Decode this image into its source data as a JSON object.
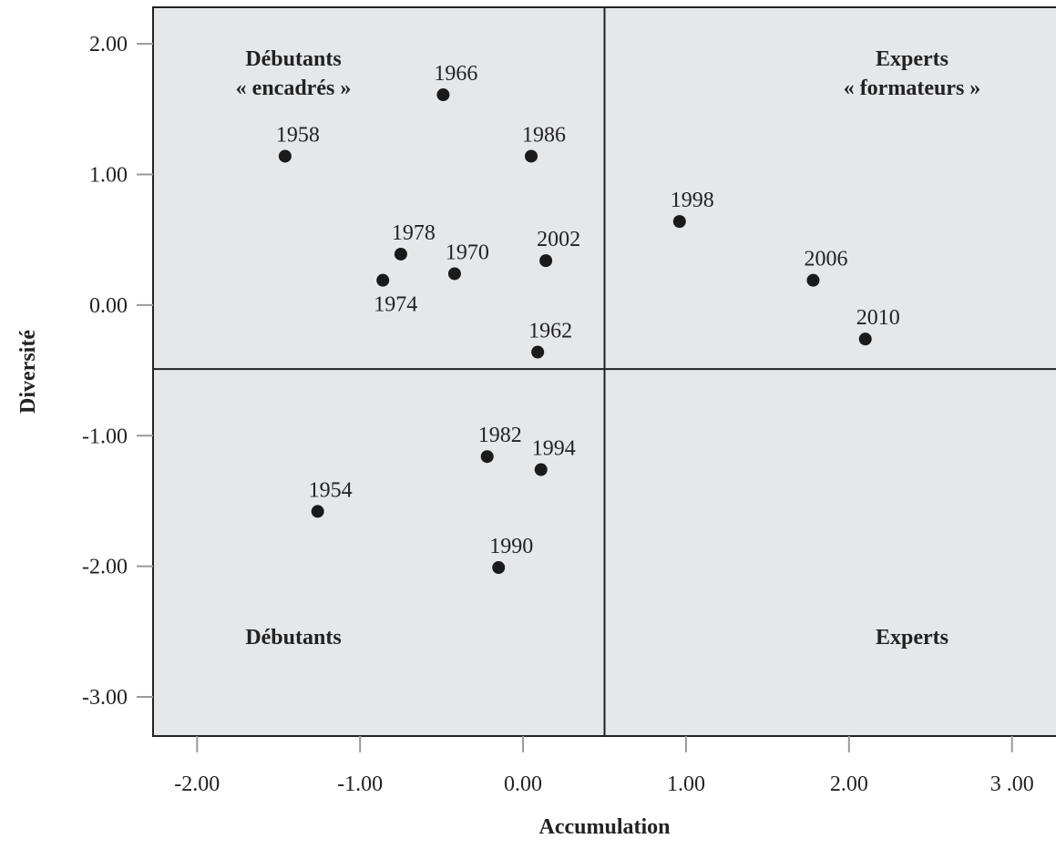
{
  "chart_data": {
    "type": "scatter",
    "xlabel": "Accumulation",
    "ylabel": "Diversité",
    "xlim": [
      -2.27,
      3.27
    ],
    "ylim": [
      -3.3,
      2.28
    ],
    "x_ticks": [
      {
        "value": -2,
        "label": "-2.00"
      },
      {
        "value": -1,
        "label": "-1.00"
      },
      {
        "value": 0,
        "label": "0.00"
      },
      {
        "value": 1,
        "label": "1.00"
      },
      {
        "value": 2,
        "label": "2.00"
      },
      {
        "value": 3,
        "label": "3 .00"
      }
    ],
    "y_ticks": [
      {
        "value": 2,
        "label": "2.00"
      },
      {
        "value": 1,
        "label": "1.00"
      },
      {
        "value": 0,
        "label": "0.00"
      },
      {
        "value": -1,
        "label": "-1.00"
      },
      {
        "value": -2,
        "label": "-2.00"
      },
      {
        "value": -3,
        "label": "-3.00"
      }
    ],
    "reference_lines": {
      "x": 0.5,
      "y": -0.49
    },
    "grid": false,
    "plot_background": "#e6e7e9",
    "point_color": "#1a1a1a",
    "points": [
      {
        "label": "1954",
        "x": -1.26,
        "y": -1.58
      },
      {
        "label": "1958",
        "x": -1.46,
        "y": 1.14
      },
      {
        "label": "1962",
        "x": 0.09,
        "y": -0.36
      },
      {
        "label": "1966",
        "x": -0.49,
        "y": 1.61
      },
      {
        "label": "1970",
        "x": -0.42,
        "y": 0.24
      },
      {
        "label": "1974",
        "x": -0.86,
        "y": 0.19
      },
      {
        "label": "1978",
        "x": -0.75,
        "y": 0.39
      },
      {
        "label": "1982",
        "x": -0.22,
        "y": -1.16
      },
      {
        "label": "1986",
        "x": 0.05,
        "y": 1.14
      },
      {
        "label": "1990",
        "x": -0.15,
        "y": -2.01
      },
      {
        "label": "1994",
        "x": 0.11,
        "y": -1.26
      },
      {
        "label": "1998",
        "x": 0.96,
        "y": 0.64
      },
      {
        "label": "2002",
        "x": 0.14,
        "y": 0.34
      },
      {
        "label": "2006",
        "x": 1.78,
        "y": 0.19
      },
      {
        "label": "2010",
        "x": 2.1,
        "y": -0.26
      }
    ],
    "quadrant_labels": [
      {
        "lines": [
          "Débutants",
          "« encadrés »"
        ],
        "position": "top-left"
      },
      {
        "lines": [
          "Experts",
          "« formateurs »"
        ],
        "position": "top-right"
      },
      {
        "lines": [
          "Débutants"
        ],
        "position": "bottom-left"
      },
      {
        "lines": [
          "Experts"
        ],
        "position": "bottom-right"
      }
    ]
  }
}
